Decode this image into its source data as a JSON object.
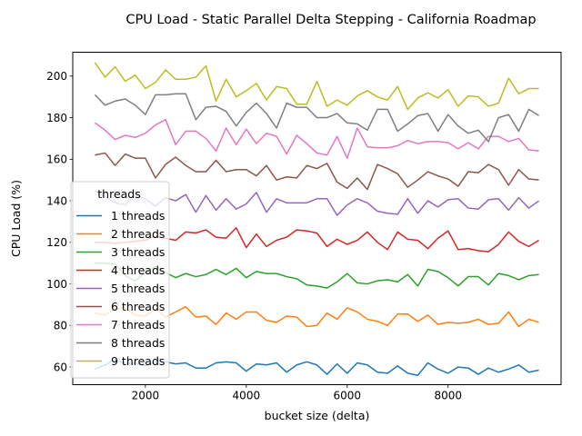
{
  "chart_data": {
    "type": "line",
    "title": "CPU Load - Static Parallel Delta Stepping - California Roadmap",
    "xlabel": "bucket size (delta)",
    "ylabel": "CPU Load (%)",
    "xlim": [
      560,
      10240
    ],
    "ylim": [
      51.5,
      211.5
    ],
    "xticks": [
      2000,
      4000,
      6000,
      8000
    ],
    "yticks": [
      60,
      80,
      100,
      120,
      140,
      160,
      180,
      200
    ],
    "grid": false,
    "legend": {
      "title": "threads",
      "placement": "lower-left"
    },
    "x": [
      1000,
      1200,
      1400,
      1600,
      1800,
      2000,
      2200,
      2400,
      2600,
      2800,
      3000,
      3200,
      3400,
      3600,
      3800,
      4000,
      4200,
      4400,
      4600,
      4800,
      5000,
      5200,
      5400,
      5600,
      5800,
      6000,
      6200,
      6400,
      6600,
      6800,
      7000,
      7200,
      7400,
      7600,
      7800,
      8000,
      8200,
      8400,
      8600,
      8800,
      9000,
      9200,
      9400,
      9600,
      9800
    ],
    "series": [
      {
        "name": "1 threads",
        "color": "#1f77b4",
        "values": [
          59,
          61,
          63.5,
          61.5,
          62,
          60.5,
          62.5,
          62.5,
          61.5,
          62,
          59.5,
          59.5,
          62,
          62.5,
          62,
          58,
          61.5,
          61,
          62,
          57.5,
          61,
          62.5,
          61,
          56.5,
          61.5,
          57,
          62,
          61,
          57.5,
          57,
          60.5,
          57,
          56,
          62,
          59,
          57,
          60,
          59.5,
          56.5,
          59.5,
          57.5,
          59,
          61,
          57.5,
          58.5
        ]
      },
      {
        "name": "2 threads",
        "color": "#ff7f0e",
        "values": [
          86,
          85,
          88,
          88.5,
          85,
          84.5,
          88,
          84,
          86.5,
          89,
          84,
          84.5,
          80.5,
          86,
          83,
          86.5,
          86.5,
          82.5,
          81.5,
          84.5,
          84,
          79.5,
          80,
          86,
          83,
          88.5,
          86.5,
          83,
          82,
          80,
          85.5,
          85.5,
          82,
          85,
          80.5,
          81.5,
          81,
          81.5,
          83,
          80.5,
          81,
          86.5,
          79.5,
          83,
          81.5
        ]
      },
      {
        "name": "3 threads",
        "color": "#2ca02c",
        "values": [
          110,
          110,
          109.5,
          104,
          101.5,
          105.5,
          108.5,
          105.5,
          103,
          105,
          103.5,
          104.5,
          107,
          104.5,
          107.5,
          103,
          106,
          105,
          105,
          103.5,
          102.5,
          99.5,
          99,
          98,
          101,
          105,
          100.5,
          100,
          101.5,
          102,
          101,
          104.5,
          99,
          107,
          106,
          103,
          99,
          103.5,
          103.5,
          99.5,
          105,
          104,
          102,
          104,
          104.5
        ]
      },
      {
        "name": "4 threads",
        "color": "#d62728",
        "values": [
          120,
          120,
          119.5,
          120,
          120.5,
          121,
          123,
          122,
          121,
          125,
          124.5,
          126,
          122.5,
          122,
          127,
          117.5,
          124,
          118,
          121,
          122.5,
          126,
          125.5,
          124.5,
          118,
          121.5,
          119,
          121,
          125,
          120,
          116.5,
          125,
          121.5,
          121,
          117,
          122,
          125.5,
          116.5,
          117,
          116,
          115.5,
          119,
          125,
          120.5,
          118,
          121
        ]
      },
      {
        "name": "5 threads",
        "color": "#9467bd",
        "values": [
          145,
          142,
          139,
          138,
          143,
          141,
          137.5,
          141.5,
          140,
          143,
          134.5,
          142.5,
          135.5,
          141,
          136,
          138.5,
          144,
          134.5,
          141,
          139,
          139,
          139,
          141,
          141,
          133,
          138,
          141,
          139,
          135,
          134,
          133.5,
          141,
          134,
          140,
          137,
          140.5,
          141,
          136.5,
          136,
          140.5,
          141,
          135.5,
          141.5,
          136.5,
          140
        ]
      },
      {
        "name": "6 threads",
        "color": "#8c564b",
        "values": [
          162,
          163,
          157,
          162.5,
          160.5,
          160.5,
          151,
          157.5,
          161,
          157,
          154,
          154,
          159.5,
          154,
          155,
          155,
          152,
          157,
          150,
          151.5,
          151,
          157,
          155.5,
          158,
          149,
          146,
          151,
          145.5,
          157.5,
          155.5,
          153,
          146.5,
          150,
          154,
          152,
          150.5,
          147,
          154,
          153.5,
          157.5,
          155,
          147.5,
          155,
          150.5,
          150
        ]
      },
      {
        "name": "7 threads",
        "color": "#e377c2",
        "values": [
          177.5,
          174,
          169.5,
          171.5,
          170.5,
          172.5,
          176.5,
          179,
          167,
          173.5,
          173.5,
          170,
          164,
          175,
          167,
          174.5,
          167.5,
          172.5,
          171,
          162.5,
          171.5,
          167.5,
          163,
          162,
          171,
          160.5,
          175,
          166,
          165.5,
          165.5,
          166.5,
          169,
          167.5,
          168.5,
          168.5,
          168,
          165,
          168,
          165,
          171,
          171,
          168.5,
          170,
          164.5,
          164
        ]
      },
      {
        "name": "8 threads",
        "color": "#7f7f7f",
        "values": [
          191,
          186,
          188,
          189,
          186,
          181.5,
          191,
          191,
          191.5,
          191.5,
          179,
          185,
          185.5,
          183,
          176,
          182.5,
          187,
          182,
          175,
          187,
          185,
          185,
          180,
          180,
          182,
          177.5,
          177,
          174,
          184,
          184,
          173.5,
          177,
          181,
          182,
          173.5,
          181.5,
          176,
          172.5,
          174,
          168.5,
          180,
          181.5,
          173.5,
          184,
          181
        ]
      },
      {
        "name": "9 threads",
        "color": "#bcbd22",
        "values": [
          206.5,
          199.5,
          204.5,
          197.5,
          200.5,
          194,
          197,
          203,
          198.5,
          198.5,
          199.5,
          205,
          188,
          198.5,
          190,
          193,
          196.5,
          188.5,
          195,
          194,
          186.5,
          186.5,
          197.5,
          185.5,
          188.5,
          186,
          190.5,
          193,
          190,
          188.5,
          195,
          184,
          189.5,
          192,
          189.5,
          193.5,
          185.5,
          190.5,
          190,
          185.5,
          187,
          199,
          191.5,
          194,
          194
        ]
      }
    ]
  }
}
